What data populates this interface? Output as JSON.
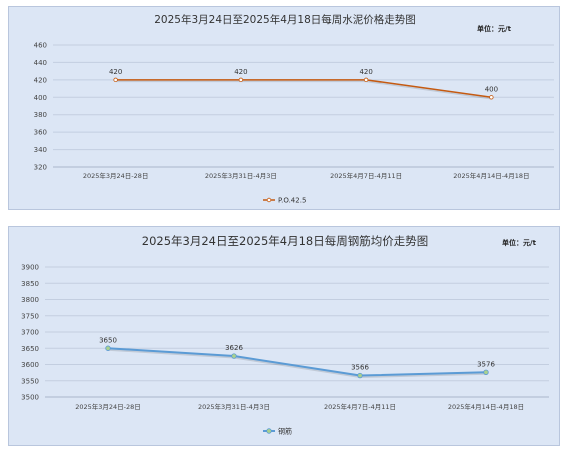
{
  "chart_data": [
    {
      "type": "line",
      "title": "2025年3月24日至2025年4月18日每周水泥价格走势图",
      "unit_label": "单位：元/t",
      "categories": [
        "2025年3月24日-28日",
        "2025年3月31日-4月3日",
        "2025年4月7日-4月11日",
        "2025年4月14日-4月18日"
      ],
      "series": [
        {
          "name": "P.O.42.5",
          "values": [
            420,
            420,
            420,
            400
          ],
          "color": "#c55a11",
          "marker_color": "#ffffff"
        }
      ],
      "ylim": [
        320,
        460
      ],
      "yticks": [
        320,
        340,
        360,
        380,
        400,
        420,
        440,
        460
      ],
      "grid": true,
      "legend": "bottom"
    },
    {
      "type": "line",
      "title": "2025年3月24日至2025年4月18日每周钢筋均价走势图",
      "unit_label": "单位：元/t",
      "categories": [
        "2025年3月24日-28日",
        "2025年3月31日-4月3日",
        "2025年4月7日-4月11日",
        "2025年4月14日-4月18日"
      ],
      "series": [
        {
          "name": "钢筋",
          "values": [
            3650,
            3626,
            3566,
            3576
          ],
          "color": "#5b9bd5",
          "marker_color": "#a9d18e"
        }
      ],
      "ylim": [
        3500,
        3900
      ],
      "yticks": [
        3500,
        3550,
        3600,
        3650,
        3700,
        3750,
        3800,
        3850,
        3900
      ],
      "grid": true,
      "legend": "bottom"
    }
  ]
}
